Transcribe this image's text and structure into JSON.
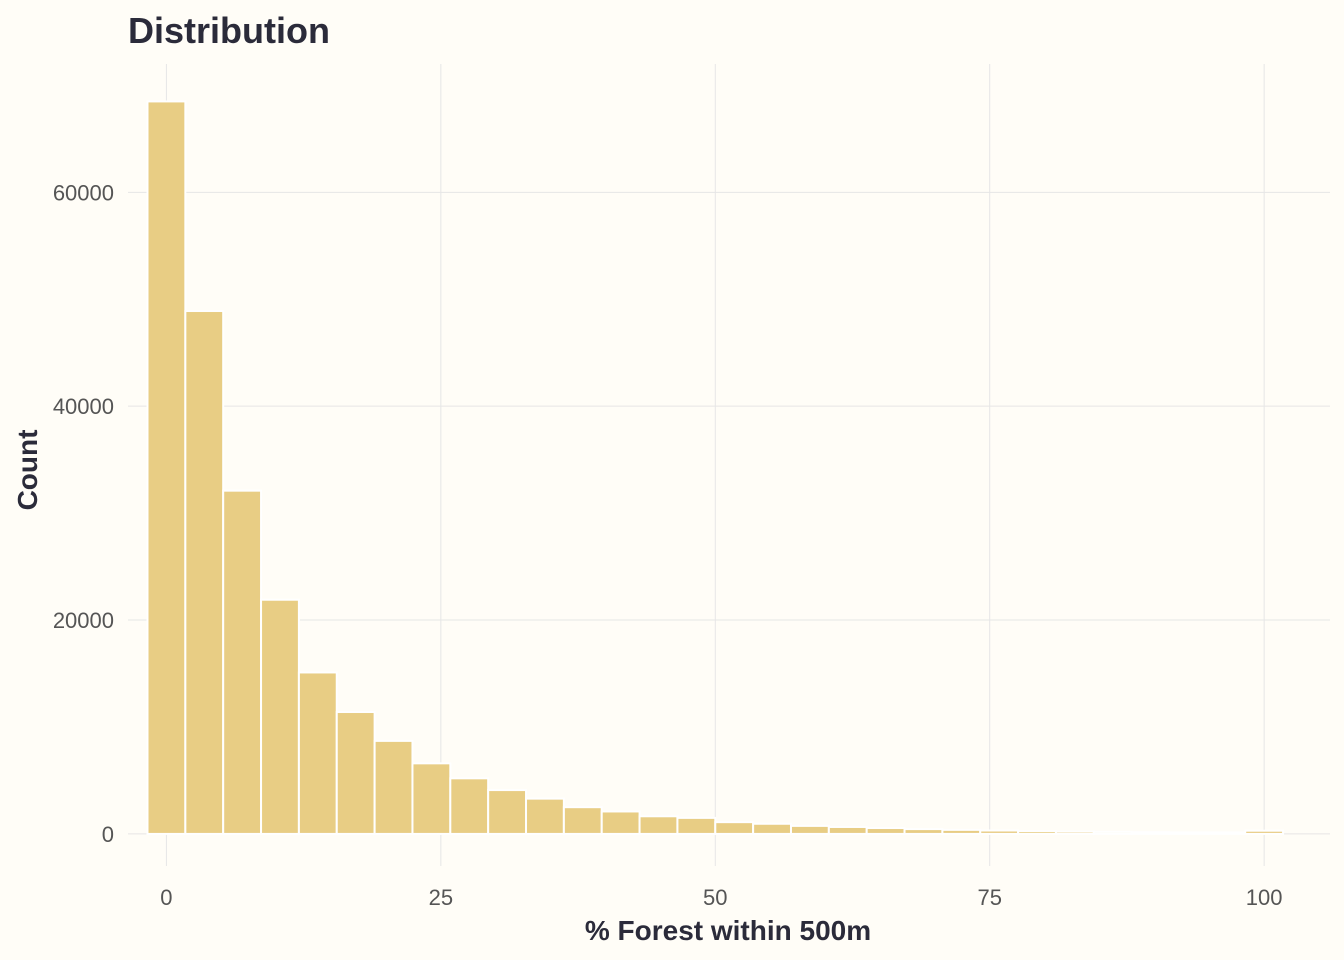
{
  "chart_data": {
    "type": "bar",
    "title": "Distribution",
    "xlabel": "% Forest within 500m",
    "ylabel": "Count",
    "bar_color": "#e8cd84",
    "background": "#fffdf7",
    "grid": true,
    "binwidth": 3.448,
    "x_ticks": [
      0,
      25,
      50,
      75,
      100
    ],
    "x_tick_labels": [
      "0",
      "25",
      "50",
      "75",
      "100"
    ],
    "y_ticks": [
      0,
      20000,
      40000,
      60000
    ],
    "y_tick_labels": [
      "0",
      "20000",
      "40000",
      "60000"
    ],
    "xlim": [
      -3.5,
      106
    ],
    "ylim": [
      -3000,
      72000
    ],
    "bins": [
      {
        "start": -1.724,
        "end": 1.724,
        "count": 68500
      },
      {
        "start": 1.724,
        "end": 5.172,
        "count": 48900
      },
      {
        "start": 5.172,
        "end": 8.621,
        "count": 32100
      },
      {
        "start": 8.621,
        "end": 12.069,
        "count": 21900
      },
      {
        "start": 12.069,
        "end": 15.517,
        "count": 15100
      },
      {
        "start": 15.517,
        "end": 18.966,
        "count": 11400
      },
      {
        "start": 18.966,
        "end": 22.414,
        "count": 8700
      },
      {
        "start": 22.414,
        "end": 25.862,
        "count": 6600
      },
      {
        "start": 25.862,
        "end": 29.31,
        "count": 5200
      },
      {
        "start": 29.31,
        "end": 32.759,
        "count": 4100
      },
      {
        "start": 32.759,
        "end": 36.207,
        "count": 3300
      },
      {
        "start": 36.207,
        "end": 39.655,
        "count": 2500
      },
      {
        "start": 39.655,
        "end": 43.103,
        "count": 2100
      },
      {
        "start": 43.103,
        "end": 46.552,
        "count": 1650
      },
      {
        "start": 46.552,
        "end": 50.0,
        "count": 1500
      },
      {
        "start": 50.0,
        "end": 53.448,
        "count": 1100
      },
      {
        "start": 53.448,
        "end": 56.897,
        "count": 950
      },
      {
        "start": 56.897,
        "end": 60.345,
        "count": 750
      },
      {
        "start": 60.345,
        "end": 63.793,
        "count": 650
      },
      {
        "start": 63.793,
        "end": 67.241,
        "count": 550
      },
      {
        "start": 67.241,
        "end": 70.69,
        "count": 450
      },
      {
        "start": 70.69,
        "end": 74.138,
        "count": 380
      },
      {
        "start": 74.138,
        "end": 77.586,
        "count": 320
      },
      {
        "start": 77.586,
        "end": 81.034,
        "count": 260
      },
      {
        "start": 81.034,
        "end": 84.483,
        "count": 220
      },
      {
        "start": 84.483,
        "end": 87.931,
        "count": 190
      },
      {
        "start": 87.931,
        "end": 91.379,
        "count": 160
      },
      {
        "start": 91.379,
        "end": 94.828,
        "count": 140
      },
      {
        "start": 94.828,
        "end": 98.276,
        "count": 150
      },
      {
        "start": 98.276,
        "end": 101.724,
        "count": 300
      }
    ]
  }
}
